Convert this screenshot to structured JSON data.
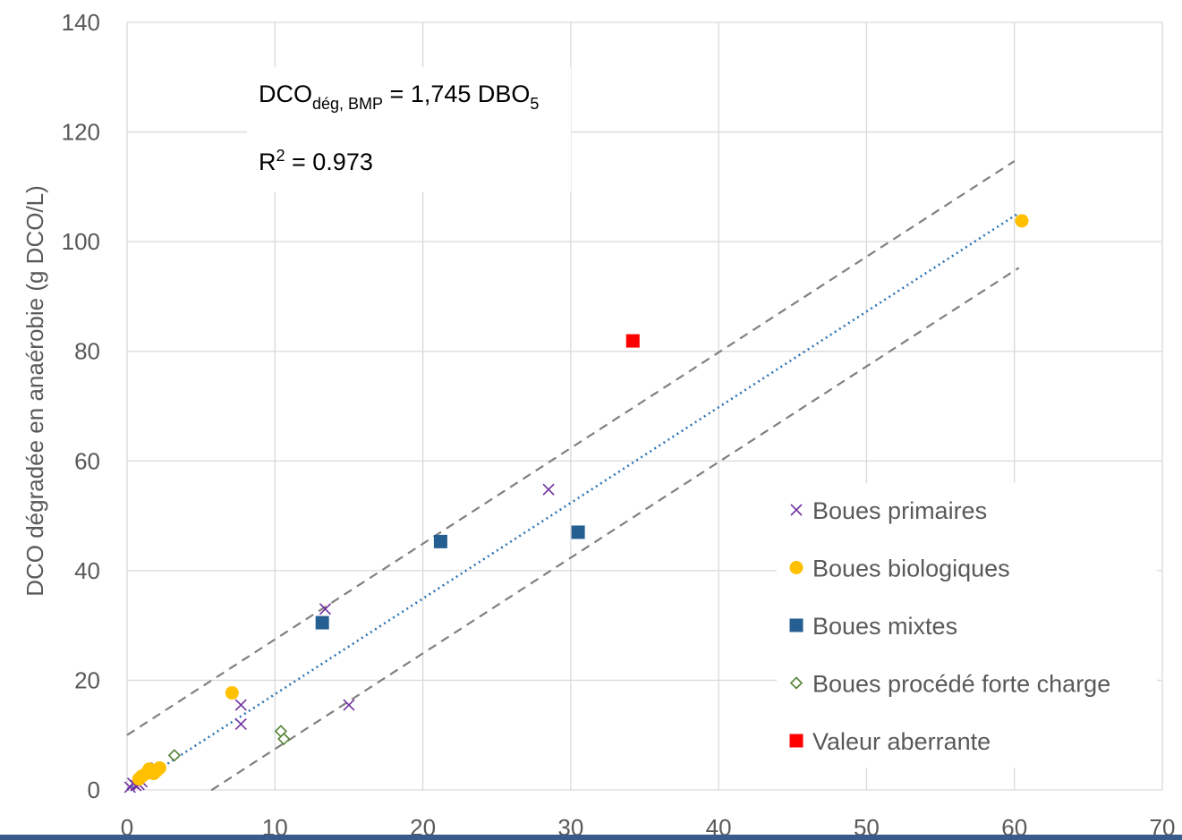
{
  "chart_data": {
    "type": "scatter",
    "ylabel": "DCO dégradée en anaérobie (g DCO/L)",
    "xlabel": "",
    "xlim": [
      0,
      70
    ],
    "ylim": [
      0,
      140
    ],
    "x_ticks": [
      "0",
      "10",
      "20",
      "30",
      "40",
      "50",
      "60",
      "70"
    ],
    "y_ticks": [
      "0",
      "20",
      "40",
      "60",
      "80",
      "100",
      "120",
      "140"
    ],
    "grid": "vertical and horizontal",
    "legend_position": "lower-right",
    "annotation": {
      "eq_main": "DCO",
      "eq_sub": "dég, BMP",
      "eq_rest": " = 1,745 DBO",
      "eq_sub2": "5",
      "r2_main": "R",
      "r2_sup": "2",
      "r2_rest": " = 0.973"
    },
    "fit_line": {
      "slope": 1.745,
      "intercept": 0,
      "x_range": [
        0,
        60.3
      ],
      "color": "#2e75b6"
    },
    "confidence_band": [
      {
        "slope": 1.745,
        "intercept": 10,
        "x_range": [
          0,
          60
        ],
        "color": "#808080"
      },
      {
        "slope": 1.745,
        "intercept": -10,
        "x_range": [
          5.7,
          60.3
        ],
        "color": "#808080"
      }
    ],
    "series": [
      {
        "name": "Boues primaires",
        "marker": "x",
        "color": "#7030a0",
        "points": [
          [
            0.2,
            0.5
          ],
          [
            0.4,
            1.2
          ],
          [
            0.6,
            0.8
          ],
          [
            0.8,
            1.0
          ],
          [
            1.0,
            1.5
          ],
          [
            2.0,
            4.0
          ],
          [
            7.7,
            15.5
          ],
          [
            7.7,
            12.0
          ],
          [
            13.4,
            33.0
          ],
          [
            15.0,
            15.5
          ],
          [
            28.5,
            54.8
          ]
        ]
      },
      {
        "name": "Boues biologiques",
        "marker": "circle",
        "color": "#ffc000",
        "points": [
          [
            0.8,
            2.0
          ],
          [
            1.0,
            2.5
          ],
          [
            1.3,
            3.0
          ],
          [
            1.5,
            3.8
          ],
          [
            1.8,
            3.0
          ],
          [
            2.0,
            3.5
          ],
          [
            2.2,
            4.0
          ],
          [
            7.1,
            17.7
          ],
          [
            60.5,
            103.8
          ]
        ]
      },
      {
        "name": "Boues mixtes",
        "marker": "square",
        "color": "#255e91",
        "points": [
          [
            13.2,
            30.5
          ],
          [
            21.2,
            45.3
          ],
          [
            30.5,
            47.0
          ]
        ]
      },
      {
        "name": "Boues procédé forte charge",
        "marker": "diamond",
        "color": "#548235",
        "points": [
          [
            3.2,
            6.3
          ],
          [
            10.4,
            10.7
          ],
          [
            10.6,
            9.3
          ]
        ]
      },
      {
        "name": "Valeur aberrante",
        "marker": "square",
        "color": "#ff0000",
        "points": [
          [
            34.2,
            81.9
          ]
        ]
      }
    ]
  }
}
